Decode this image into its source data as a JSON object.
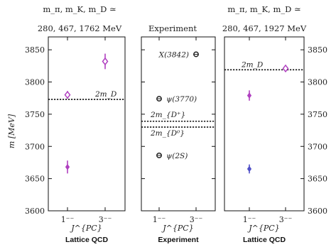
{
  "chart_data": [
    {
      "type": "scatter",
      "panel": "left",
      "title_line1": "m_π, m_K, m_D ≃",
      "title_line2": "280, 467, 1762 MeV",
      "bottom_label": "Lattice QCD",
      "xlabel": "J^{PC}",
      "ylabel": "m [MeV]",
      "categories": [
        "1⁻⁻",
        "3⁻⁻"
      ],
      "ylim": [
        3600,
        3870
      ],
      "yticks": [
        3600,
        3650,
        3700,
        3750,
        3800,
        3850
      ],
      "points": [
        {
          "category": "1⁻⁻",
          "value": 3668,
          "err": 10,
          "marker": "filled",
          "color": "#b040c0"
        },
        {
          "category": "1⁻⁻",
          "value": 3780,
          "err": 6,
          "marker": "diamond",
          "color": "#b040c0"
        },
        {
          "category": "3⁻⁻",
          "value": 3832,
          "err": 12,
          "marker": "diamond",
          "color": "#b040c0"
        }
      ],
      "thresholds": [
        {
          "label": "2m_D",
          "value": 3773
        }
      ]
    },
    {
      "type": "scatter",
      "panel": "middle",
      "title_line1": "Experiment",
      "bottom_label": "Experiment",
      "xlabel": "J^{PC}",
      "categories": [
        "1⁻⁻",
        "3⁻⁻"
      ],
      "ylim": [
        3600,
        3870
      ],
      "points": [
        {
          "category": "1⁻⁻",
          "value": 3686,
          "label": "ψ(2S)",
          "marker": "circle",
          "color": "#222222"
        },
        {
          "category": "1⁻⁻",
          "value": 3774,
          "label": "ψ(3770)",
          "marker": "circle",
          "color": "#222222"
        },
        {
          "category": "3⁻⁻",
          "value": 3843,
          "label": "X(3842)",
          "marker": "circle",
          "color": "#222222"
        }
      ],
      "thresholds": [
        {
          "label": "2m_{D⁺}",
          "value": 3739
        },
        {
          "label": "2m_{D⁰}",
          "value": 3730
        }
      ]
    },
    {
      "type": "scatter",
      "panel": "right",
      "title_line1": "m_π, m_K, m_D ≃",
      "title_line2": "280, 467, 1927 MeV",
      "bottom_label": "Lattice QCD",
      "xlabel": "J^{PC}",
      "categories": [
        "1⁻⁻",
        "3⁻⁻"
      ],
      "ylim": [
        3600,
        3870
      ],
      "yticks": [
        3600,
        3650,
        3700,
        3750,
        3800,
        3850
      ],
      "points": [
        {
          "category": "1⁻⁻",
          "value": 3665,
          "err": 7,
          "marker": "filled",
          "color": "#5050c8"
        },
        {
          "category": "1⁻⁻",
          "value": 3779,
          "err": 8,
          "marker": "filled",
          "color": "#b040c0"
        },
        {
          "category": "3⁻⁻",
          "value": 3821,
          "err": 5,
          "marker": "diamond",
          "color": "#b040c0"
        }
      ],
      "thresholds": [
        {
          "label": "2m_D",
          "value": 3819
        }
      ]
    }
  ]
}
